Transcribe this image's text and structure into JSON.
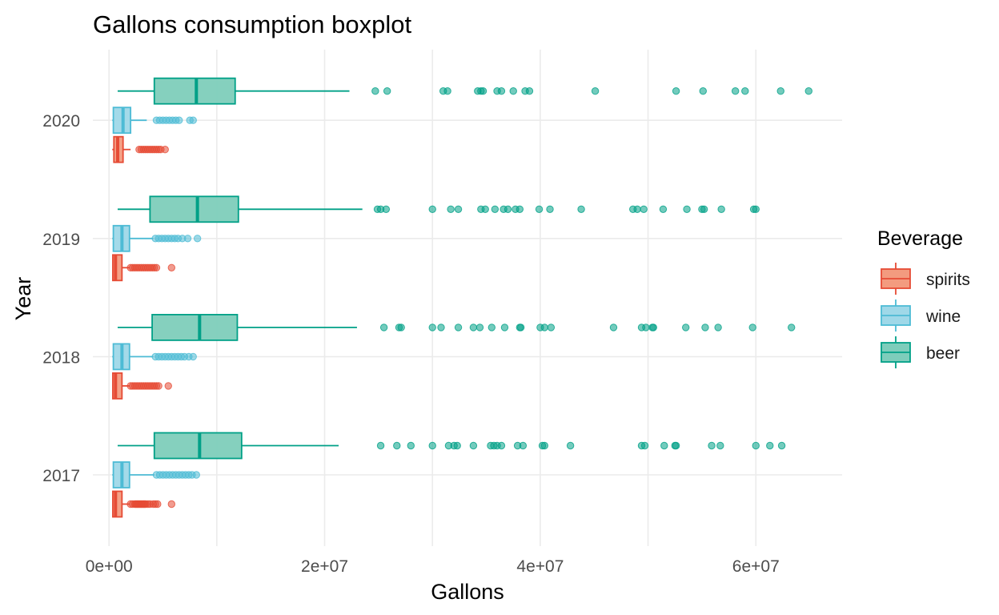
{
  "chart_data": {
    "type": "boxplot",
    "orientation": "horizontal",
    "title": "Gallons consumption boxplot",
    "xlabel": "Gallons",
    "ylabel": "Year",
    "xlim": [
      -1500000,
      68000000
    ],
    "x_ticks": [
      0,
      20000000,
      40000000,
      60000000
    ],
    "x_tick_labels": [
      "0e+00",
      "2e+07",
      "4e+07",
      "6e+07"
    ],
    "categories": [
      "2017",
      "2018",
      "2019",
      "2020"
    ],
    "grid": true,
    "legend": {
      "title": "Beverage",
      "position": "right"
    },
    "series": [
      {
        "name": "spirits",
        "color": "#E64B35",
        "fill": "#F39B7F",
        "boxes": [
          {
            "year": "2017",
            "whisker_low": 300000,
            "q1": 350000,
            "median": 600000,
            "q3": 1200000,
            "whisker_high": 1900000,
            "outliers": [
              2000000,
              2200000,
              2400000,
              2500000,
              2600000,
              2700000,
              2800000,
              2900000,
              3000000,
              3100000,
              3200000,
              3300000,
              3400000,
              3600000,
              3800000,
              4100000,
              4300000,
              4500000,
              5800000
            ]
          },
          {
            "year": "2018",
            "whisker_low": 300000,
            "q1": 350000,
            "median": 600000,
            "q3": 1200000,
            "whisker_high": 1900000,
            "outliers": [
              2000000,
              2200000,
              2400000,
              2600000,
              2800000,
              3000000,
              3200000,
              3400000,
              3600000,
              3800000,
              4000000,
              4200000,
              4400000,
              4600000,
              5500000
            ]
          },
          {
            "year": "2019",
            "whisker_low": 300000,
            "q1": 350000,
            "median": 600000,
            "q3": 1200000,
            "whisker_high": 1900000,
            "outliers": [
              2000000,
              2200000,
              2400000,
              2600000,
              2800000,
              3000000,
              3200000,
              3400000,
              3600000,
              3800000,
              4000000,
              4200000,
              4400000,
              5800000
            ]
          },
          {
            "year": "2020",
            "whisker_low": 300000,
            "q1": 450000,
            "median": 800000,
            "q3": 1300000,
            "whisker_high": 2000000,
            "outliers": [
              2800000,
              3000000,
              3200000,
              3400000,
              3600000,
              3800000,
              4000000,
              4200000,
              4400000,
              4600000,
              4800000,
              5200000
            ]
          }
        ]
      },
      {
        "name": "wine",
        "color": "#4DBBD5",
        "fill": "#9FD8E8",
        "boxes": [
          {
            "year": "2017",
            "whisker_low": 300000,
            "q1": 400000,
            "median": 1200000,
            "q3": 1900000,
            "whisker_high": 4200000,
            "outliers": [
              4400000,
              4700000,
              5000000,
              5300000,
              5600000,
              5900000,
              6200000,
              6500000,
              6800000,
              7100000,
              7400000,
              7700000,
              8100000
            ]
          },
          {
            "year": "2018",
            "whisker_low": 300000,
            "q1": 400000,
            "median": 1200000,
            "q3": 1900000,
            "whisker_high": 4100000,
            "outliers": [
              4300000,
              4600000,
              4900000,
              5200000,
              5500000,
              5800000,
              6100000,
              6400000,
              6700000,
              7000000,
              7400000,
              7800000
            ]
          },
          {
            "year": "2019",
            "whisker_low": 300000,
            "q1": 400000,
            "median": 1200000,
            "q3": 1900000,
            "whisker_high": 4100000,
            "outliers": [
              4300000,
              4600000,
              4900000,
              5200000,
              5500000,
              5800000,
              6100000,
              6400000,
              6800000,
              7300000,
              8200000
            ]
          },
          {
            "year": "2020",
            "whisker_low": 300000,
            "q1": 400000,
            "median": 1300000,
            "q3": 2000000,
            "whisker_high": 3500000,
            "outliers": [
              4400000,
              4700000,
              5000000,
              5300000,
              5600000,
              5900000,
              6200000,
              6500000,
              7500000,
              7800000
            ]
          }
        ]
      },
      {
        "name": "beer",
        "color": "#00A087",
        "fill": "#7ECDBB",
        "boxes": [
          {
            "year": "2017",
            "whisker_low": 800000,
            "q1": 4200000,
            "median": 8400000,
            "q3": 12300000,
            "whisker_high": 21300000,
            "outliers": [
              25200000,
              26700000,
              28000000,
              30000000,
              31500000,
              32000000,
              32300000,
              33800000,
              35400000,
              35700000,
              36000000,
              36400000,
              37900000,
              38400000,
              40200000,
              40400000,
              42800000,
              49400000,
              49700000,
              51500000,
              52500000,
              52600000,
              55900000,
              56700000,
              60000000,
              61300000,
              62400000
            ]
          },
          {
            "year": "2018",
            "whisker_low": 800000,
            "q1": 4000000,
            "median": 8400000,
            "q3": 11900000,
            "whisker_high": 23000000,
            "outliers": [
              25500000,
              26900000,
              27100000,
              30000000,
              30800000,
              32400000,
              33800000,
              34400000,
              35500000,
              36700000,
              38100000,
              38200000,
              40000000,
              40400000,
              41000000,
              46800000,
              49400000,
              49800000,
              50400000,
              50500000,
              53500000,
              55300000,
              56500000,
              59700000,
              63300000
            ]
          },
          {
            "year": "2019",
            "whisker_low": 800000,
            "q1": 3800000,
            "median": 8200000,
            "q3": 12000000,
            "whisker_high": 23500000,
            "outliers": [
              24900000,
              25200000,
              25700000,
              30000000,
              31700000,
              32400000,
              34500000,
              34900000,
              35800000,
              36600000,
              37000000,
              37700000,
              38100000,
              39900000,
              40900000,
              43800000,
              48600000,
              49000000,
              49600000,
              51400000,
              53600000,
              55000000,
              55200000,
              56800000,
              59800000,
              60000000
            ]
          },
          {
            "year": "2020",
            "whisker_low": 800000,
            "q1": 4200000,
            "median": 8100000,
            "q3": 11700000,
            "whisker_high": 22300000,
            "outliers": [
              24700000,
              25800000,
              31000000,
              31400000,
              34200000,
              34500000,
              34700000,
              36000000,
              36400000,
              37500000,
              38600000,
              39000000,
              45100000,
              52600000,
              55100000,
              58100000,
              59000000,
              62300000,
              64900000
            ]
          }
        ]
      }
    ]
  }
}
